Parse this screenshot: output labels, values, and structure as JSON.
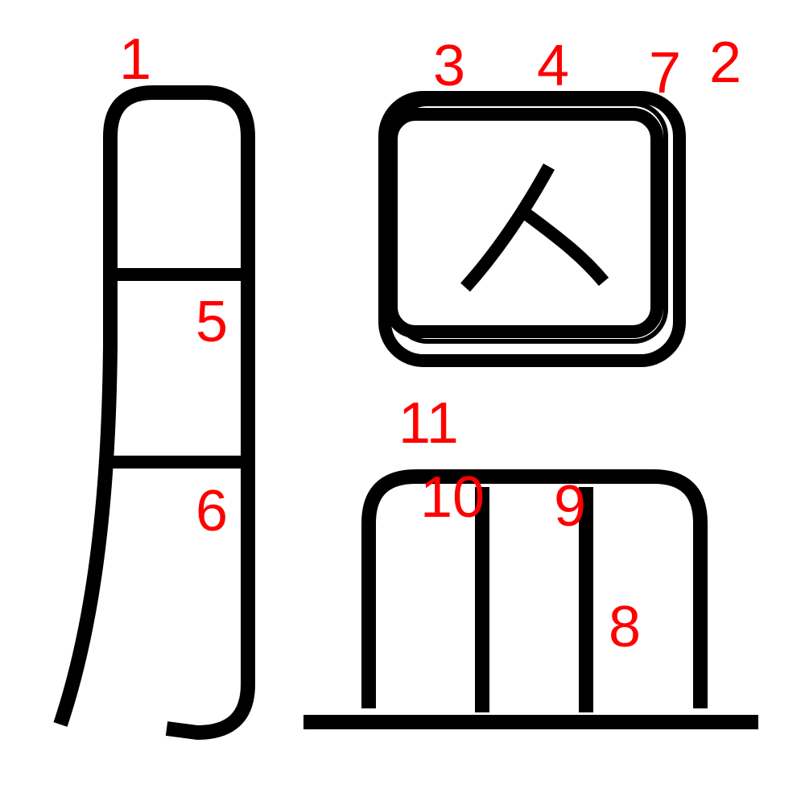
{
  "colors": {
    "stroke": "#000000",
    "label": "#ff0000",
    "background": "#ffffff"
  },
  "glyph_inner_character": "人",
  "stroke_labels": [
    "1",
    "2",
    "3",
    "4",
    "5",
    "6",
    "7",
    "8",
    "9",
    "10",
    "11"
  ]
}
